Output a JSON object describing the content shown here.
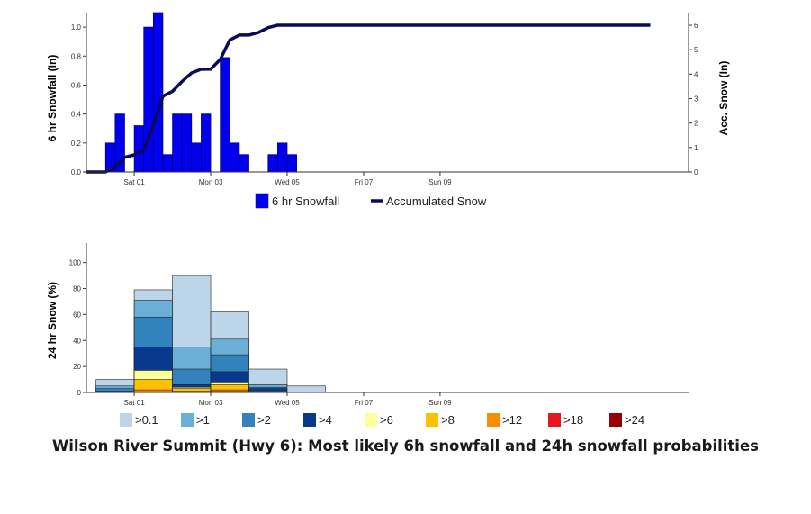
{
  "caption": "Wilson River Summit (Hwy 6): Most likely 6h snowfall and 24h snowfall probabilities",
  "colors": {
    "bars": "#0000ee",
    "accumulated_line": "#0a0a5a",
    "axis": "#333333",
    "prob": {
      ">0.1": "#bcd5e8",
      ">1": "#6baed6",
      ">2": "#3182bd",
      ">4": "#08398e",
      ">6": "#ffff99",
      ">8": "#ffc000",
      ">12": "#ff8c00",
      ">18": "#e31a1c",
      ">24": "#990000"
    }
  },
  "chart_data": [
    {
      "type": "bar",
      "overlay": "line",
      "ylabel": "6 hr Snowfall (In)",
      "y2label": "Acc. Snow (In)",
      "ylim": [
        0,
        1.1
      ],
      "y2lim": [
        0,
        6
      ],
      "yticks": [
        "0.0",
        "0.2",
        "0.4",
        "0.6",
        "0.8",
        "1.0"
      ],
      "y2ticks": [
        "0",
        "1",
        "2",
        "3",
        "4",
        "5",
        "6"
      ],
      "xticks": [
        "Sat 01",
        "Mon 03",
        "Wed 05",
        "Fri 07",
        "Sun 09"
      ],
      "xlim_hours": [
        -30,
        348
      ],
      "xtick_hours": [
        0,
        48,
        96,
        144,
        192
      ],
      "legend": [
        "6 hr Snowfall",
        "Accumulated Snow"
      ],
      "series": [
        {
          "name": "6 hr Snowfall",
          "kind": "bar",
          "x_hours": [
            -18,
            -12,
            0,
            6,
            12,
            18,
            24,
            30,
            36,
            42,
            54,
            60,
            66,
            84,
            90,
            96
          ],
          "values": [
            0.2,
            0.4,
            0.32,
            1.0,
            1.1,
            0.12,
            0.4,
            0.4,
            0.2,
            0.4,
            0.79,
            0.2,
            0.12,
            0.12,
            0.2,
            0.12
          ]
        },
        {
          "name": "Accumulated Snow",
          "kind": "line",
          "x_hours": [
            -30,
            -18,
            -12,
            -6,
            0,
            6,
            12,
            18,
            24,
            30,
            36,
            42,
            48,
            54,
            60,
            66,
            72,
            78,
            84,
            90,
            96,
            102,
            324
          ],
          "values": [
            0,
            0,
            0.2,
            0.6,
            0.7,
            0.9,
            1.9,
            3.1,
            3.3,
            3.7,
            4.05,
            4.2,
            4.2,
            4.6,
            5.4,
            5.6,
            5.6,
            5.7,
            5.9,
            6.0,
            6.0,
            6.0,
            6.0
          ]
        }
      ]
    },
    {
      "type": "bar",
      "stacked": "overlapping",
      "ylabel": "24 hr Snow (%)",
      "ylim": [
        0,
        115
      ],
      "yticks": [
        "0",
        "20",
        "40",
        "60",
        "80",
        "100"
      ],
      "xticks": [
        "Sat 01",
        "Mon 03",
        "Wed 05",
        "Fri 07",
        "Sun 09"
      ],
      "xlim_hours": [
        -30,
        348
      ],
      "xtick_hours": [
        0,
        48,
        96,
        144,
        192
      ],
      "periods": [
        {
          "start_hour": -24,
          "end_hour": 0,
          "probabilities": {
            ">0.1": 10,
            ">1": 5,
            ">2": 3,
            ">4": 1
          }
        },
        {
          "start_hour": 0,
          "end_hour": 24,
          "probabilities": {
            ">0.1": 79,
            ">1": 71,
            ">2": 58,
            ">4": 35,
            ">6": 17,
            ">8": 10,
            ">12": 2,
            ">18": 0.6,
            ">24": 0.3
          }
        },
        {
          "start_hour": 24,
          "end_hour": 48,
          "probabilities": {
            ">0.1": 90,
            ">1": 35,
            ">2": 18,
            ">4": 6,
            ">6": 4,
            ">8": 3,
            ">12": 1
          }
        },
        {
          "start_hour": 48,
          "end_hour": 72,
          "probabilities": {
            ">0.1": 62,
            ">1": 41,
            ">2": 29,
            ">4": 16,
            ">6": 8,
            ">8": 6,
            ">12": 2,
            ">18": 0.8
          }
        },
        {
          "start_hour": 72,
          "end_hour": 96,
          "probabilities": {
            ">0.1": 18,
            ">1": 6,
            ">2": 4,
            ">4": 3,
            ">6": 1
          }
        },
        {
          "start_hour": 96,
          "end_hour": 120,
          "probabilities": {
            ">0.1": 5
          }
        }
      ],
      "legend": [
        ">0.1",
        ">1",
        ">2",
        ">4",
        ">6",
        ">8",
        ">12",
        ">18",
        ">24"
      ]
    }
  ]
}
